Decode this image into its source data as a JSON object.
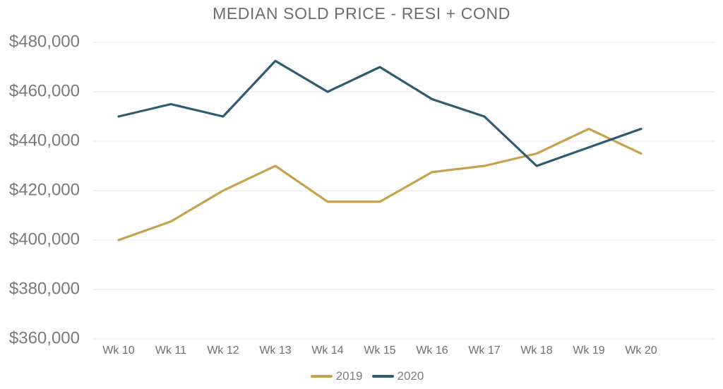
{
  "chart_data": {
    "type": "line",
    "title": "MEDIAN SOLD PRICE - RESI + COND",
    "xlabel": "",
    "ylabel": "",
    "categories": [
      "Wk 10",
      "Wk 11",
      "Wk 12",
      "Wk 13",
      "Wk 14",
      "Wk 15",
      "Wk 16",
      "Wk 17",
      "Wk 18",
      "Wk 19",
      "Wk 20"
    ],
    "series": [
      {
        "name": "2019",
        "color": "#C6A24F",
        "values": [
          400000,
          407500,
          420000,
          430000,
          415500,
          415500,
          427500,
          430000,
          435000,
          445000,
          435000
        ]
      },
      {
        "name": "2020",
        "color": "#2F5B72",
        "values": [
          450000,
          455000,
          450000,
          472500,
          460000,
          470000,
          457000,
          450000,
          430000,
          437500,
          445000
        ]
      }
    ],
    "ylim": [
      360000,
      480000
    ],
    "ytick_step": 20000,
    "ytick_labels_top_down": [
      "$480,000",
      "$460,000",
      "$440,000",
      "$420,000",
      "$400,000",
      "$380,000",
      "$360,000"
    ],
    "grid": "horizontal",
    "legend_position": "bottom"
  },
  "colors": {
    "series_2019": "#C6A24F",
    "series_2020": "#2F5B72",
    "title_text": "#6D6D6D",
    "y_axis_text": "#7A7A7A",
    "x_axis_text": "#6F6F6F",
    "legend_text": "#7D7D7D",
    "gridline": "#E7E7E7"
  }
}
